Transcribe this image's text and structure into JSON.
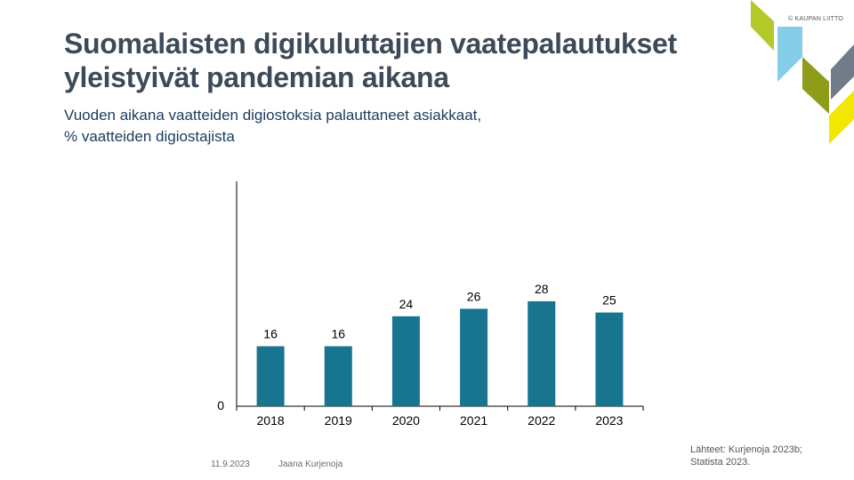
{
  "slide": {
    "title_line1": "Suomalaisten digikuluttajien vaatepalautukset",
    "title_line2": "yleistyivät pandemian aikana",
    "subtitle_line1": "Vuoden  aikana vaatteiden digiostoksia palauttaneet asiakkaat,",
    "subtitle_line2": "% vaatteiden digiostajista",
    "brand": "© KAUPAN LIITTO",
    "date": "11.9.2023",
    "author": "Jaana Kurjenoja",
    "source_line1": "Lähteet: Kurjenoja 2023b;",
    "source_line2": "Statista 2023."
  },
  "colors": {
    "bar": "#17758f",
    "title": "#3d4a57",
    "subtitle": "#1a3c5a",
    "deco_lime": "#b5c82a",
    "deco_olive": "#8f9c1a",
    "deco_blue": "#86cdea",
    "deco_gray": "#707d88",
    "deco_yellow": "#f3e600"
  },
  "chart_data": {
    "type": "bar",
    "categories": [
      "2018",
      "2019",
      "2020",
      "2021",
      "2022",
      "2023"
    ],
    "values": [
      16,
      16,
      24,
      26,
      28,
      25
    ],
    "data_labels": [
      "16",
      "16",
      "24",
      "26",
      "28",
      "25"
    ],
    "title": "",
    "xlabel": "",
    "ylabel": "",
    "ylim": [
      0,
      60
    ],
    "y_tick_labels": [
      "0"
    ],
    "grid": false,
    "legend": "none"
  }
}
